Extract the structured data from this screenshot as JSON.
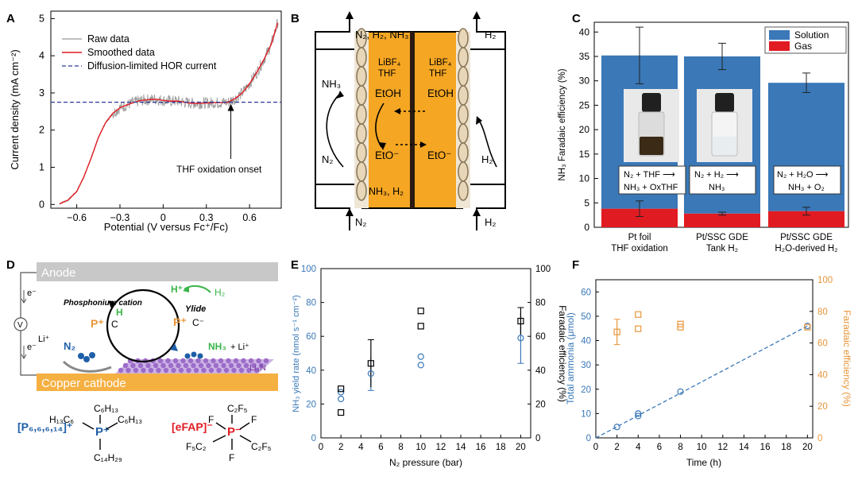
{
  "panel_letters": {
    "a": "A",
    "b": "B",
    "c": "C",
    "d": "D",
    "e": "E",
    "f": "F"
  },
  "colors": {
    "blue": "#3a78b8",
    "red": "#e11b22",
    "orange": "#e8963a",
    "cell": "#f5a623",
    "darkblue": "#1f5fa8",
    "green": "#3cb44b"
  },
  "chart_data": [
    {
      "id": "A",
      "type": "line",
      "xlabel": "Potential (V versus Fc⁺/Fc)",
      "ylabel": "Current density (mA cm⁻²)",
      "xlim": [
        -0.78,
        0.82
      ],
      "ylim": [
        -0.1,
        5.2
      ],
      "xticks": [
        -0.6,
        -0.3,
        0,
        0.3,
        0.6
      ],
      "xticklabels": [
        "−0.6",
        "−0.3",
        "0",
        "0.3",
        "0.6"
      ],
      "yticks": [
        0,
        1,
        2,
        3,
        4,
        5
      ],
      "legend": [
        "Raw data",
        "Smoothed data",
        "Diffusion-limited HOR current"
      ],
      "series": [
        {
          "name": "Smoothed data",
          "x": [
            -0.72,
            -0.66,
            -0.6,
            -0.55,
            -0.5,
            -0.45,
            -0.4,
            -0.35,
            -0.3,
            -0.25,
            -0.2,
            -0.15,
            -0.1,
            -0.05,
            0,
            0.05,
            0.1,
            0.15,
            0.2,
            0.25,
            0.3,
            0.35,
            0.4,
            0.45,
            0.5,
            0.55,
            0.6,
            0.65,
            0.7,
            0.75,
            0.8
          ],
          "y": [
            0.02,
            0.12,
            0.35,
            0.75,
            1.25,
            1.8,
            2.2,
            2.45,
            2.6,
            2.68,
            2.75,
            2.8,
            2.82,
            2.83,
            2.8,
            2.78,
            2.78,
            2.75,
            2.72,
            2.72,
            2.73,
            2.74,
            2.74,
            2.75,
            2.85,
            3.0,
            3.25,
            3.55,
            3.9,
            4.3,
            4.95
          ]
        }
      ],
      "hline": 2.75,
      "annotation": "THF oxidation onset",
      "annotation_x": 0.47
    },
    {
      "id": "C",
      "type": "bar",
      "ylabel": "NH₃ Faradaic efficiency (%)",
      "ylim": [
        0,
        42
      ],
      "yticks": [
        0,
        5,
        10,
        15,
        20,
        25,
        30,
        35,
        40
      ],
      "categories": [
        [
          "Pt foil",
          "THF oxidation"
        ],
        [
          "Pt/SSC GDE",
          "Tank H₂"
        ],
        [
          "Pt/SSC GDE",
          "H₂O-derived H₂"
        ]
      ],
      "series": [
        {
          "name": "Solution",
          "values": [
            31.4,
            32.2,
            26.3
          ]
        },
        {
          "name": "Gas",
          "values": [
            3.8,
            2.8,
            3.3
          ]
        }
      ],
      "totals": [
        35.2,
        35.0,
        29.6
      ],
      "total_err": [
        5.8,
        2.7,
        2.0
      ],
      "gas_err": [
        1.6,
        0.3,
        0.8
      ],
      "reactions": [
        [
          "N₂ + THF ⟶",
          "NH₃ + OxTHF"
        ],
        [
          "N₂ + H₂ ⟶",
          "NH₃"
        ],
        [
          "N₂ + H₂O ⟶",
          "NH₃ + O₂"
        ]
      ]
    },
    {
      "id": "E",
      "type": "scatter",
      "xlabel": "N₂ pressure (bar)",
      "ylabel": "NH₃ yield rate (nmol s⁻¹ cm⁻²)",
      "ylabel_right": "Faradaic efficiency (%)",
      "xlim": [
        0,
        21
      ],
      "ylim": [
        0,
        100
      ],
      "xticks": [
        0,
        2,
        4,
        6,
        8,
        10,
        12,
        14,
        16,
        18,
        20
      ],
      "yticks": [
        0,
        20,
        40,
        60,
        80,
        100
      ],
      "series": [
        {
          "name": "Yield rate",
          "x": [
            2,
            2,
            5,
            10,
            10,
            20
          ],
          "y": [
            23,
            27,
            38,
            43,
            48,
            59
          ],
          "mean_err": [
            [
              5,
              38,
              10
            ],
            [
              20,
              59,
              15
            ]
          ]
        },
        {
          "name": "Faradaic efficiency",
          "x": [
            2,
            2,
            5,
            10,
            10,
            20
          ],
          "y": [
            15,
            29,
            44,
            66,
            75,
            69
          ],
          "mean_err": [
            [
              5,
              44,
              14
            ],
            [
              20,
              69,
              8
            ]
          ]
        }
      ]
    },
    {
      "id": "F",
      "type": "scatter",
      "xlabel": "Time (h)",
      "ylabel": "Total ammonia (μmol)",
      "ylabel_right": "Faradaic efficiency (%)",
      "xlim": [
        0,
        20.5
      ],
      "ylim": [
        0,
        65
      ],
      "ylim_right": [
        0,
        100
      ],
      "xticks": [
        0,
        2,
        4,
        6,
        8,
        10,
        12,
        14,
        16,
        18,
        20
      ],
      "yticks": [
        0,
        10,
        20,
        30,
        40,
        50,
        60
      ],
      "yticks_right": [
        0,
        20,
        40,
        60,
        80,
        100
      ],
      "series": [
        {
          "name": "Total ammonia",
          "x": [
            2,
            4,
            4,
            8,
            20
          ],
          "y": [
            4.5,
            9,
            10,
            19,
            46
          ],
          "fit": [
            [
              0,
              0
            ],
            [
              20,
              46
            ]
          ]
        },
        {
          "name": "Faradaic efficiency",
          "x": [
            2,
            4,
            4,
            8,
            8,
            20
          ],
          "y": [
            67,
            69,
            78,
            70,
            72,
            70
          ],
          "err": [
            [
              2,
              67,
              8
            ]
          ]
        }
      ]
    }
  ],
  "panel_b": {
    "top_left": "N₂, H₂, NH₃",
    "top_right": "H₂",
    "bottom_left": "N₂",
    "bottom_right": "H₂",
    "nh3": "NH₃",
    "n2": "N₂",
    "h2": "H₂",
    "salt_left": "LiBF₄",
    "salt_right": "LiBF₄",
    "thf_left": "THF",
    "thf_right": "THF",
    "etoh_left": "EtOH",
    "etoh_right": "EtOH",
    "eto_left": "EtO⁻",
    "eto_right": "EtO⁻",
    "products": "NH₃, H₂"
  },
  "panel_d": {
    "anode": "Anode",
    "cathode": "Copper cathode",
    "e_top": "e⁻",
    "e_bottom": "e⁻",
    "meter": "V",
    "phosphonium": "Phosphonium cation",
    "ylide": "Ylide",
    "h_plus": "H⁺",
    "h2": "H₂",
    "li_left": "Li⁺",
    "n2": "N₂",
    "nh3": "NH₃",
    "li_right": "+ Li⁺",
    "li3n": "Li₃N",
    "cation_label": "[P₆,₆,₆,₁₄]⁺",
    "anion_label": "[eFAP]⁻"
  }
}
